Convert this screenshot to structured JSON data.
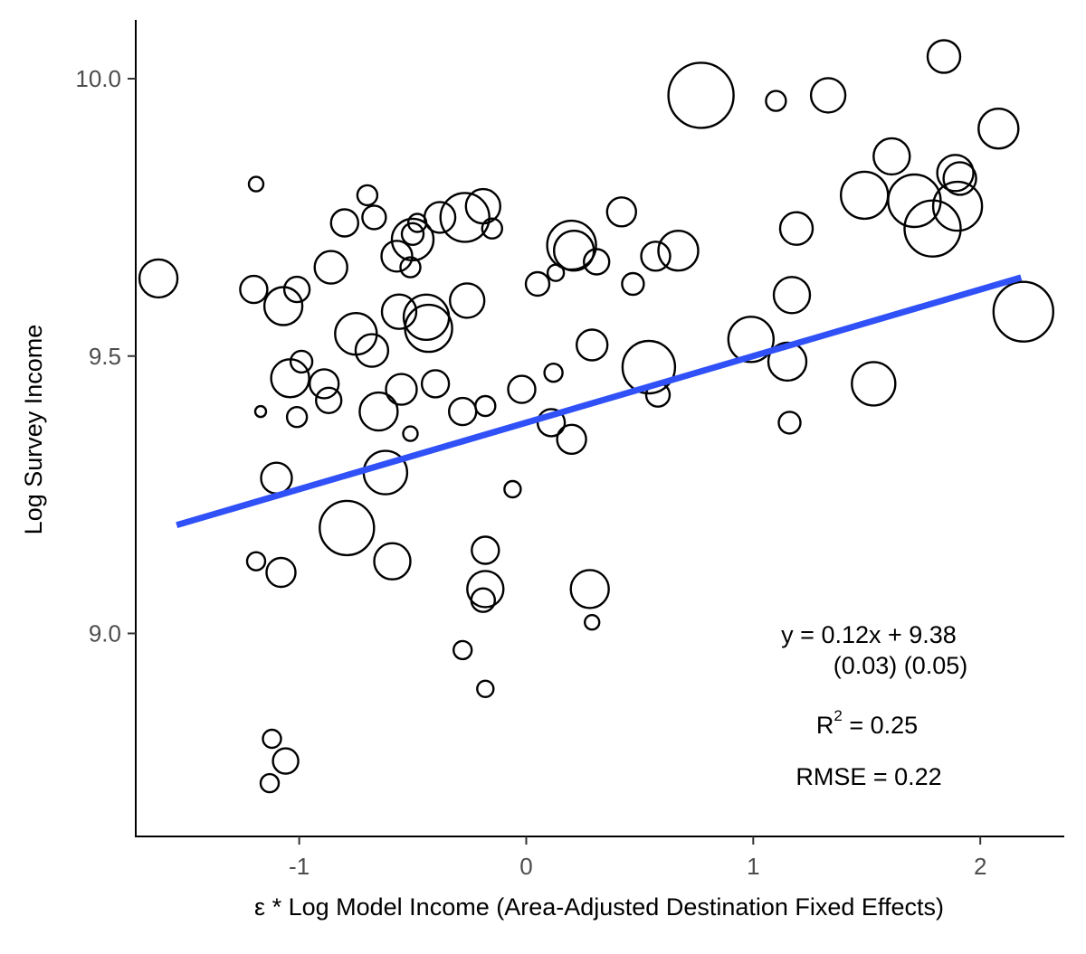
{
  "chart_data": {
    "type": "scatter",
    "title": "",
    "xlabel": "ε * Log Model Income (Area-Adjusted Destination Fixed Effects)",
    "ylabel": "Log Survey Income",
    "xlim": [
      -1.72,
      2.37
    ],
    "ylim": [
      8.634,
      10.106
    ],
    "x_ticks": [
      -1,
      0,
      1,
      2
    ],
    "x_tick_labels": [
      "-1",
      "0",
      "1",
      "2"
    ],
    "y_ticks": [
      9.0,
      9.5,
      10.0
    ],
    "y_tick_labels": [
      "9.0",
      "9.5",
      "10.0"
    ],
    "grid": false,
    "legend": "none",
    "marker": "open circle, size proportional to weight",
    "fit_line": {
      "slope": 0.12,
      "intercept": 9.38,
      "x_range": [
        -1.54,
        2.18
      ],
      "color": "#3050f8"
    },
    "annotations": {
      "equation": "y = 0.12x + 9.38",
      "std_errors": "(0.03)  (0.05)",
      "r2_prefix": "R",
      "r2_sup": "2",
      "r2_value": " = 0.25",
      "rmse": "RMSE = 0.22"
    },
    "points": [
      {
        "x": 1.84,
        "y": 10.04,
        "s": 18
      },
      {
        "x": 0.77,
        "y": 9.97,
        "s": 36
      },
      {
        "x": 1.33,
        "y": 9.97,
        "s": 19
      },
      {
        "x": 1.1,
        "y": 9.96,
        "s": 11
      },
      {
        "x": 2.08,
        "y": 9.91,
        "s": 22
      },
      {
        "x": 1.61,
        "y": 9.86,
        "s": 20
      },
      {
        "x": 1.89,
        "y": 9.83,
        "s": 20
      },
      {
        "x": 1.91,
        "y": 9.82,
        "s": 18
      },
      {
        "x": 1.49,
        "y": 9.79,
        "s": 26
      },
      {
        "x": 1.71,
        "y": 9.78,
        "s": 29
      },
      {
        "x": 1.9,
        "y": 9.77,
        "s": 27
      },
      {
        "x": 1.79,
        "y": 9.73,
        "s": 31
      },
      {
        "x": 1.19,
        "y": 9.73,
        "s": 18
      },
      {
        "x": 1.17,
        "y": 9.61,
        "s": 20
      },
      {
        "x": 2.19,
        "y": 9.58,
        "s": 33
      },
      {
        "x": 0.99,
        "y": 9.53,
        "s": 25
      },
      {
        "x": 1.15,
        "y": 9.49,
        "s": 21
      },
      {
        "x": 1.53,
        "y": 9.45,
        "s": 24
      },
      {
        "x": 1.16,
        "y": 9.38,
        "s": 12
      },
      {
        "x": -1.19,
        "y": 9.81,
        "s": 8
      },
      {
        "x": -1.17,
        "y": 9.4,
        "s": 6
      },
      {
        "x": -1.62,
        "y": 9.64,
        "s": 21
      },
      {
        "x": -1.2,
        "y": 9.62,
        "s": 15
      },
      {
        "x": -1.07,
        "y": 9.59,
        "s": 21
      },
      {
        "x": -1.01,
        "y": 9.62,
        "s": 14
      },
      {
        "x": -0.86,
        "y": 9.66,
        "s": 18
      },
      {
        "x": -0.7,
        "y": 9.79,
        "s": 11
      },
      {
        "x": -0.67,
        "y": 9.75,
        "s": 13
      },
      {
        "x": -0.8,
        "y": 9.74,
        "s": 15
      },
      {
        "x": -0.48,
        "y": 9.74,
        "s": 10
      },
      {
        "x": -0.5,
        "y": 9.72,
        "s": 12
      },
      {
        "x": -0.5,
        "y": 9.71,
        "s": 23
      },
      {
        "x": -0.57,
        "y": 9.68,
        "s": 17
      },
      {
        "x": -0.51,
        "y": 9.66,
        "s": 11
      },
      {
        "x": -0.38,
        "y": 9.75,
        "s": 17
      },
      {
        "x": -0.27,
        "y": 9.75,
        "s": 27
      },
      {
        "x": -0.19,
        "y": 9.77,
        "s": 19
      },
      {
        "x": -0.15,
        "y": 9.73,
        "s": 11
      },
      {
        "x": -0.56,
        "y": 9.58,
        "s": 19
      },
      {
        "x": -0.44,
        "y": 9.57,
        "s": 25
      },
      {
        "x": -0.43,
        "y": 9.55,
        "s": 26
      },
      {
        "x": -0.26,
        "y": 9.6,
        "s": 19
      },
      {
        "x": -0.75,
        "y": 9.54,
        "s": 23
      },
      {
        "x": -0.68,
        "y": 9.51,
        "s": 18
      },
      {
        "x": -0.99,
        "y": 9.49,
        "s": 12
      },
      {
        "x": -1.04,
        "y": 9.46,
        "s": 21
      },
      {
        "x": -0.89,
        "y": 9.45,
        "s": 16
      },
      {
        "x": -0.87,
        "y": 9.42,
        "s": 14
      },
      {
        "x": -0.65,
        "y": 9.4,
        "s": 21
      },
      {
        "x": -0.55,
        "y": 9.44,
        "s": 17
      },
      {
        "x": -0.4,
        "y": 9.45,
        "s": 15
      },
      {
        "x": -0.28,
        "y": 9.4,
        "s": 15
      },
      {
        "x": -0.18,
        "y": 9.41,
        "s": 11
      },
      {
        "x": -1.01,
        "y": 9.39,
        "s": 11
      },
      {
        "x": -0.51,
        "y": 9.36,
        "s": 8
      },
      {
        "x": -1.1,
        "y": 9.28,
        "s": 17
      },
      {
        "x": -0.62,
        "y": 9.29,
        "s": 24
      },
      {
        "x": -0.06,
        "y": 9.26,
        "s": 9
      },
      {
        "x": 0.05,
        "y": 9.63,
        "s": 13
      },
      {
        "x": 0.13,
        "y": 9.65,
        "s": 9
      },
      {
        "x": 0.2,
        "y": 9.7,
        "s": 27
      },
      {
        "x": 0.21,
        "y": 9.69,
        "s": 22
      },
      {
        "x": 0.31,
        "y": 9.67,
        "s": 14
      },
      {
        "x": 0.42,
        "y": 9.76,
        "s": 16
      },
      {
        "x": 0.47,
        "y": 9.63,
        "s": 12
      },
      {
        "x": 0.57,
        "y": 9.68,
        "s": 16
      },
      {
        "x": 0.67,
        "y": 9.69,
        "s": 22
      },
      {
        "x": -0.02,
        "y": 9.44,
        "s": 15
      },
      {
        "x": 0.12,
        "y": 9.47,
        "s": 10
      },
      {
        "x": 0.29,
        "y": 9.52,
        "s": 17
      },
      {
        "x": 0.54,
        "y": 9.48,
        "s": 29
      },
      {
        "x": 0.58,
        "y": 9.43,
        "s": 13
      },
      {
        "x": 0.11,
        "y": 9.38,
        "s": 15
      },
      {
        "x": 0.2,
        "y": 9.35,
        "s": 16
      },
      {
        "x": -1.19,
        "y": 9.13,
        "s": 10
      },
      {
        "x": -1.08,
        "y": 9.11,
        "s": 16
      },
      {
        "x": -0.79,
        "y": 9.19,
        "s": 30
      },
      {
        "x": -0.59,
        "y": 9.13,
        "s": 20
      },
      {
        "x": -0.18,
        "y": 9.15,
        "s": 15
      },
      {
        "x": -0.18,
        "y": 9.08,
        "s": 20
      },
      {
        "x": -0.19,
        "y": 9.06,
        "s": 13
      },
      {
        "x": 0.28,
        "y": 9.08,
        "s": 21
      },
      {
        "x": 0.29,
        "y": 9.02,
        "s": 8
      },
      {
        "x": -0.28,
        "y": 8.97,
        "s": 10
      },
      {
        "x": -0.18,
        "y": 8.9,
        "s": 9
      },
      {
        "x": -1.12,
        "y": 8.81,
        "s": 10
      },
      {
        "x": -1.06,
        "y": 8.77,
        "s": 14
      },
      {
        "x": -1.13,
        "y": 8.73,
        "s": 10
      }
    ]
  }
}
